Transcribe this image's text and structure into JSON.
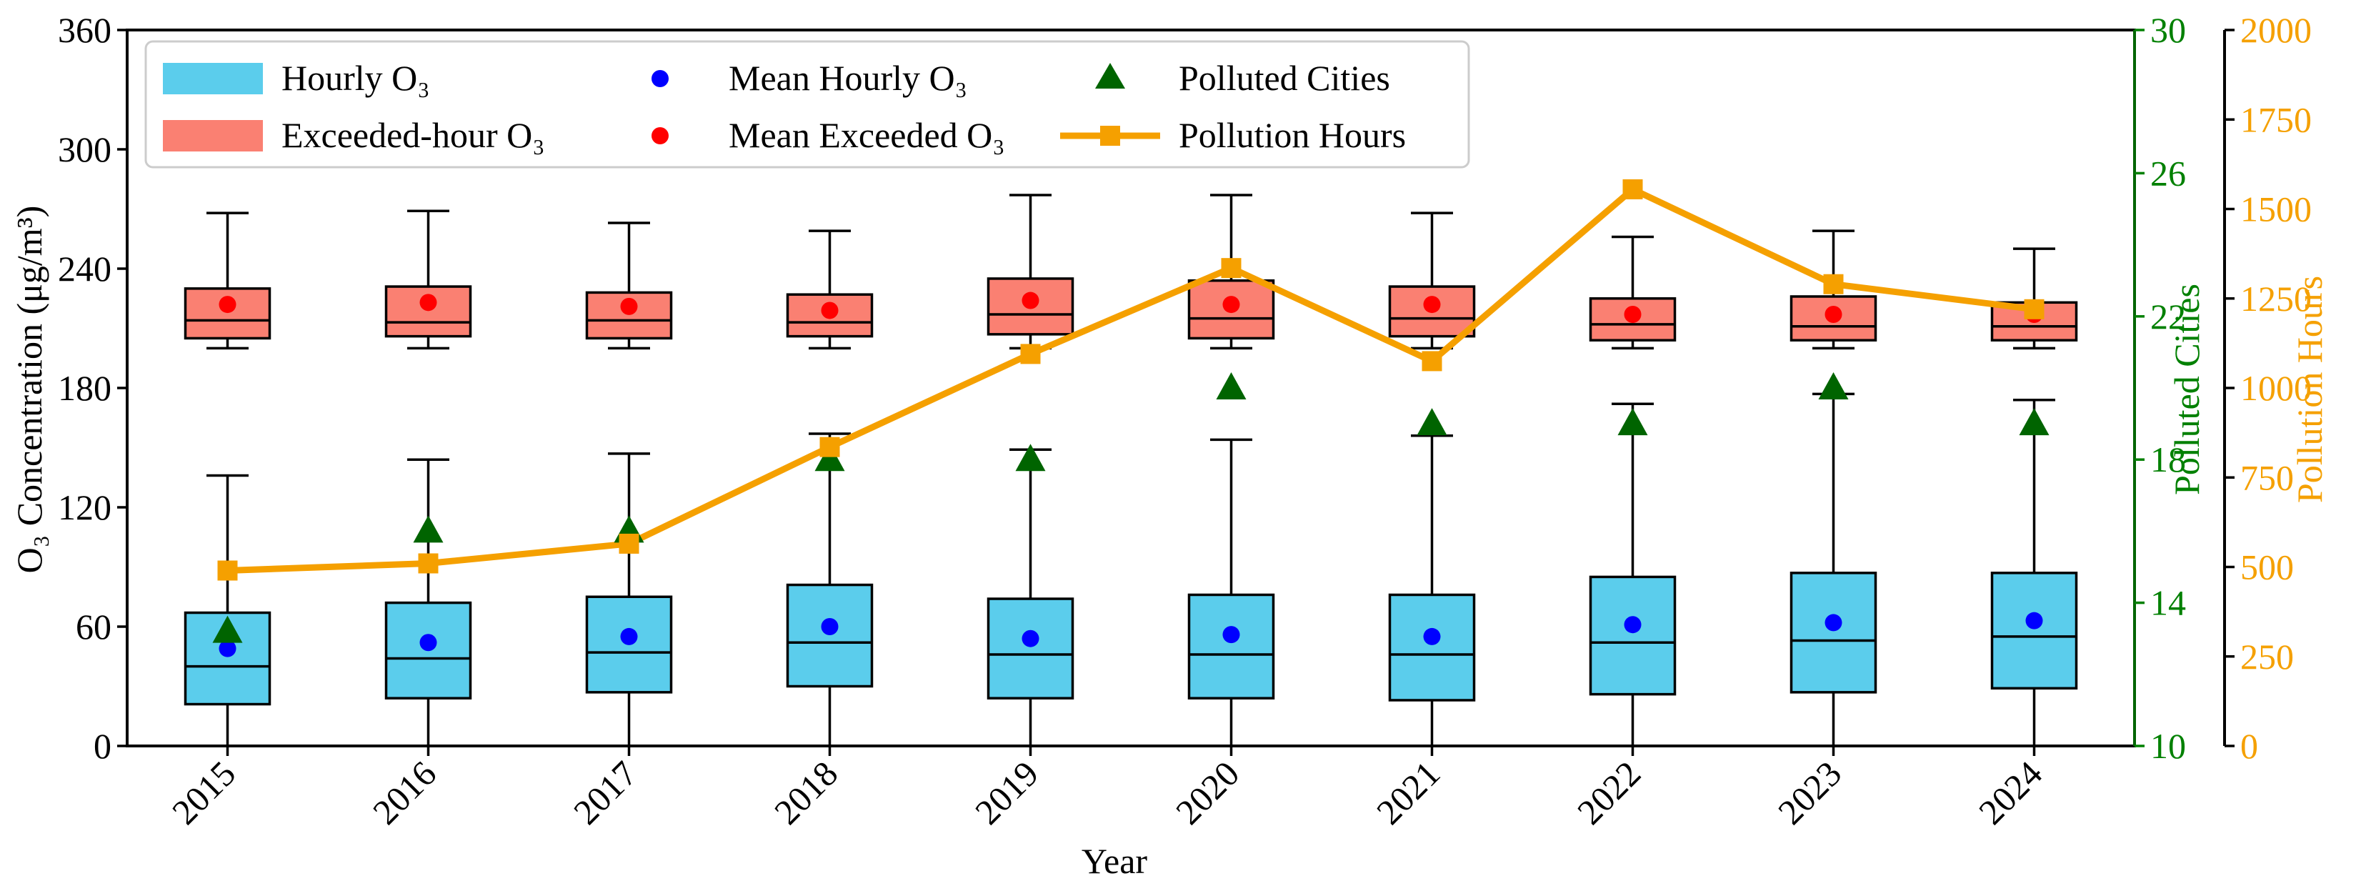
{
  "chart_data": {
    "type": "box",
    "xlabel": "Year",
    "ylabel": "O₃ Concentration (μg/m³)",
    "ylim": [
      0,
      360
    ],
    "yticks": [
      0,
      60,
      120,
      180,
      240,
      300,
      360
    ],
    "categories": [
      "2015",
      "2016",
      "2017",
      "2018",
      "2019",
      "2020",
      "2021",
      "2022",
      "2023",
      "2024"
    ],
    "hourly_o3": {
      "name": "Hourly O₃",
      "color": "#5bcdec",
      "boxes": [
        {
          "whislo": 0,
          "q1": 21,
          "med": 40,
          "q3": 67,
          "whishi": 136
        },
        {
          "whislo": 0,
          "q1": 24,
          "med": 44,
          "q3": 72,
          "whishi": 144
        },
        {
          "whislo": 0,
          "q1": 27,
          "med": 47,
          "q3": 75,
          "whishi": 147
        },
        {
          "whislo": 0,
          "q1": 30,
          "med": 52,
          "q3": 81,
          "whishi": 157
        },
        {
          "whislo": 0,
          "q1": 24,
          "med": 46,
          "q3": 74,
          "whishi": 149
        },
        {
          "whislo": 0,
          "q1": 24,
          "med": 46,
          "q3": 76,
          "whishi": 154
        },
        {
          "whislo": 0,
          "q1": 23,
          "med": 46,
          "q3": 76,
          "whishi": 156
        },
        {
          "whislo": 0,
          "q1": 26,
          "med": 52,
          "q3": 85,
          "whishi": 172
        },
        {
          "whislo": 0,
          "q1": 27,
          "med": 53,
          "q3": 87,
          "whishi": 177
        },
        {
          "whislo": 0,
          "q1": 29,
          "med": 55,
          "q3": 87,
          "whishi": 174
        }
      ],
      "means": [
        49,
        52,
        55,
        60,
        54,
        56,
        55,
        61,
        62,
        63
      ]
    },
    "exceeded_o3": {
      "name": "Exceeded-hour O₃",
      "color": "#fa8072",
      "boxes": [
        {
          "whislo": 200,
          "q1": 205,
          "med": 214,
          "q3": 230,
          "whishi": 268
        },
        {
          "whislo": 200,
          "q1": 206,
          "med": 213,
          "q3": 231,
          "whishi": 269
        },
        {
          "whislo": 200,
          "q1": 205,
          "med": 214,
          "q3": 228,
          "whishi": 263
        },
        {
          "whislo": 200,
          "q1": 206,
          "med": 213,
          "q3": 227,
          "whishi": 259
        },
        {
          "whislo": 200,
          "q1": 207,
          "med": 217,
          "q3": 235,
          "whishi": 277
        },
        {
          "whislo": 200,
          "q1": 205,
          "med": 215,
          "q3": 234,
          "whishi": 277
        },
        {
          "whislo": 200,
          "q1": 206,
          "med": 215,
          "q3": 231,
          "whishi": 268
        },
        {
          "whislo": 200,
          "q1": 204,
          "med": 212,
          "q3": 225,
          "whishi": 256
        },
        {
          "whislo": 200,
          "q1": 204,
          "med": 211,
          "q3": 226,
          "whishi": 259
        },
        {
          "whislo": 200,
          "q1": 204,
          "med": 211,
          "q3": 223,
          "whishi": 250
        }
      ],
      "means": [
        222,
        223,
        221,
        219,
        224,
        222,
        222,
        217,
        217,
        217
      ]
    },
    "polluted_cities": {
      "name": "Polluted Cities",
      "color": "#006400",
      "axis_label": "Polluted Cities",
      "ylim": [
        10,
        30
      ],
      "yticks": [
        10,
        14,
        18,
        22,
        26,
        30
      ],
      "values": [
        13.2,
        16.0,
        16.0,
        18.0,
        18.0,
        20.0,
        19.0,
        19.0,
        20.0,
        19.0
      ]
    },
    "pollution_hours": {
      "name": "Pollution Hours",
      "color": "#f5a000",
      "axis_label": "Pollution Hours",
      "ylim": [
        0,
        2000
      ],
      "yticks": [
        0,
        250,
        500,
        750,
        1000,
        1250,
        1500,
        1750,
        2000
      ],
      "values": [
        490,
        510,
        565,
        835,
        1095,
        1335,
        1075,
        1555,
        1290,
        1220
      ]
    },
    "legend": {
      "position": "upper-left",
      "items": [
        {
          "label": "Hourly O₃",
          "kind": "patch",
          "color": "#5bcdec"
        },
        {
          "label": "Mean Hourly O₃",
          "kind": "dot",
          "color": "#0000ff"
        },
        {
          "label": "Polluted Cities",
          "kind": "triangle",
          "color": "#006400"
        },
        {
          "label": "Exceeded-hour O₃",
          "kind": "patch",
          "color": "#fa8072"
        },
        {
          "label": "Mean Exceeded O₃",
          "kind": "dot",
          "color": "#ff0000"
        },
        {
          "label": "Pollution Hours",
          "kind": "line",
          "color": "#f5a000"
        }
      ]
    }
  }
}
